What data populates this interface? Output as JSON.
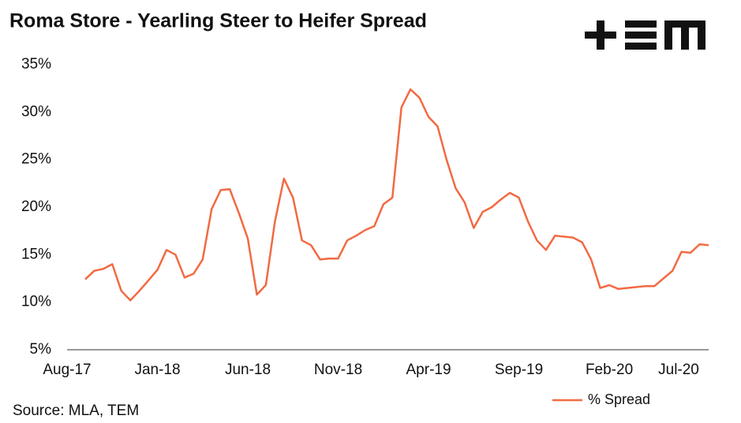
{
  "chart_data": {
    "type": "line",
    "title": "Roma Store - Yearling Steer to Heifer Spread",
    "source": "Source: MLA, TEM",
    "categories": [
      "Aug-17",
      null,
      null,
      null,
      null,
      null,
      null,
      null,
      null,
      null,
      "Jan-18",
      null,
      null,
      null,
      null,
      null,
      null,
      null,
      null,
      null,
      "Jun-18",
      null,
      null,
      null,
      null,
      null,
      null,
      null,
      null,
      null,
      "Nov-18",
      null,
      null,
      null,
      null,
      null,
      null,
      null,
      null,
      null,
      "Apr-19",
      null,
      null,
      null,
      null,
      null,
      null,
      null,
      null,
      null,
      "Sep-19",
      null,
      null,
      null,
      null,
      null,
      null,
      null,
      null,
      null,
      "Feb-20",
      null,
      null,
      null,
      null,
      null,
      null,
      null,
      null,
      null,
      "Jul-20",
      null
    ],
    "series": [
      {
        "name": "% Spread",
        "color": "#f26a42",
        "values": [
          null,
          null,
          12.4,
          13.3,
          13.5,
          14.0,
          11.2,
          10.2,
          11.2,
          12.3,
          13.4,
          15.5,
          15.0,
          12.6,
          13.0,
          14.5,
          19.8,
          21.8,
          21.9,
          19.4,
          16.7,
          10.8,
          11.8,
          18.5,
          23.0,
          21.0,
          16.5,
          16.0,
          14.5,
          14.6,
          14.6,
          16.5,
          17.0,
          17.6,
          18.0,
          20.3,
          21.0,
          30.5,
          32.4,
          31.5,
          29.5,
          28.5,
          25.0,
          22.0,
          20.5,
          17.8,
          19.5,
          20.0,
          20.8,
          21.5,
          21.0,
          18.5,
          16.5,
          15.5,
          17.0,
          16.9,
          16.8,
          16.3,
          14.5,
          11.5,
          11.8,
          11.4,
          11.5,
          11.6,
          11.7,
          11.7,
          12.5,
          13.3,
          15.3,
          15.2,
          16.1,
          16.0
        ]
      }
    ],
    "ylim": [
      5,
      35
    ],
    "yticks": [
      {
        "value": 5,
        "label": "5%"
      },
      {
        "value": 10,
        "label": "10%"
      },
      {
        "value": 15,
        "label": "15%"
      },
      {
        "value": 20,
        "label": "20%"
      },
      {
        "value": 25,
        "label": "25%"
      },
      {
        "value": 30,
        "label": "30%"
      },
      {
        "value": 35,
        "label": "35%"
      }
    ],
    "legend": "bottom-right"
  }
}
